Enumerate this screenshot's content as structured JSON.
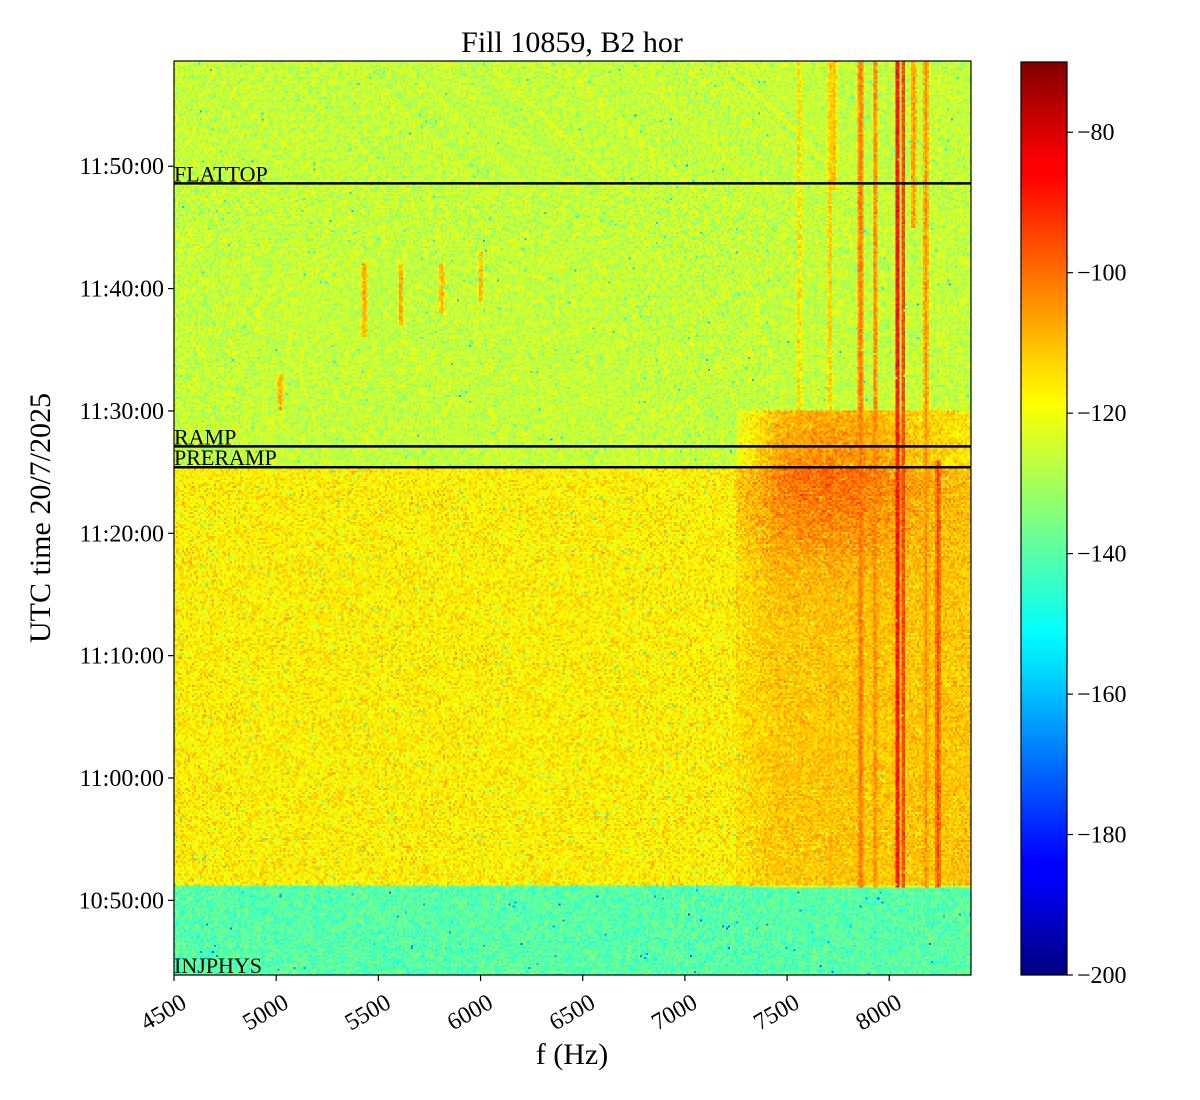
{
  "chart_data": {
    "type": "heatmap",
    "title": "Fill 10859, B2 hor",
    "xlabel": "f (Hz)",
    "ylabel": "UTC time 20/7/2025",
    "xlim": [
      4500,
      8400
    ],
    "ylim_minutes": [
      643.9,
      718.6
    ],
    "x_ticks": [
      {
        "value": 4500,
        "label": "4500"
      },
      {
        "value": 5000,
        "label": "5000"
      },
      {
        "value": 5500,
        "label": "5500"
      },
      {
        "value": 6000,
        "label": "6000"
      },
      {
        "value": 6500,
        "label": "6500"
      },
      {
        "value": 7000,
        "label": "7000"
      },
      {
        "value": 7500,
        "label": "7500"
      },
      {
        "value": 8000,
        "label": "8000"
      }
    ],
    "y_ticks": [
      {
        "value": 650,
        "label": "10:50:00"
      },
      {
        "value": 660,
        "label": "11:00:00"
      },
      {
        "value": 670,
        "label": "11:10:00"
      },
      {
        "value": 680,
        "label": "11:20:00"
      },
      {
        "value": 690,
        "label": "11:30:00"
      },
      {
        "value": 700,
        "label": "11:40:00"
      },
      {
        "value": 710,
        "label": "11:50:00"
      }
    ],
    "colorbar": {
      "colormap": "jet",
      "range": [
        -200,
        -70
      ],
      "ticks": [
        {
          "value": -80,
          "label": "−80"
        },
        {
          "value": -100,
          "label": "−100"
        },
        {
          "value": -120,
          "label": "−120"
        },
        {
          "value": -140,
          "label": "−140"
        },
        {
          "value": -160,
          "label": "−160"
        },
        {
          "value": -180,
          "label": "−180"
        },
        {
          "value": -200,
          "label": "−200"
        }
      ]
    },
    "background_levels": [
      {
        "from": 643.9,
        "to": 651.2,
        "level": -140
      },
      {
        "from": 651.2,
        "to": 685.4,
        "level": -117
      },
      {
        "from": 685.4,
        "to": 718.6,
        "level": -126
      }
    ],
    "broadband_hump": {
      "f_from": 7250,
      "f_to": 8400,
      "t_from": 651,
      "t_to": 690,
      "level": -108
    },
    "spectral_lines": [
      {
        "f": 7860,
        "t_from": 651,
        "t_to": 718.6,
        "level": -100
      },
      {
        "f": 7930,
        "t_from": 651,
        "t_to": 718.6,
        "level": -102
      },
      {
        "f": 8040,
        "t_from": 651,
        "t_to": 718.6,
        "level": -86
      },
      {
        "f": 8070,
        "t_from": 651,
        "t_to": 718.6,
        "level": -92
      },
      {
        "f": 8120,
        "t_from": 705,
        "t_to": 718.6,
        "level": -104
      },
      {
        "f": 8180,
        "t_from": 651,
        "t_to": 718.6,
        "level": -104
      },
      {
        "f": 8240,
        "t_from": 651,
        "t_to": 686,
        "level": -95
      },
      {
        "f": 7710,
        "t_from": 651,
        "t_to": 718.6,
        "level": -110
      },
      {
        "f": 7560,
        "t_from": 660,
        "t_to": 718.6,
        "level": -112
      },
      {
        "f": 7730,
        "t_from": 708,
        "t_to": 718.6,
        "level": -108
      },
      {
        "f": 5430,
        "t_from": 696,
        "t_to": 702,
        "level": -106
      },
      {
        "f": 5610,
        "t_from": 697,
        "t_to": 702,
        "level": -106
      },
      {
        "f": 5810,
        "t_from": 698,
        "t_to": 702,
        "level": -108
      },
      {
        "f": 6000,
        "t_from": 699,
        "t_to": 703,
        "level": -108
      },
      {
        "f": 5020,
        "t_from": 690,
        "t_to": 693,
        "level": -106
      }
    ],
    "events": [
      {
        "label": "FLATTOP",
        "t": 708.6
      },
      {
        "label": "RAMP",
        "t": 687.1
      },
      {
        "label": "PRERAMP",
        "t": 685.4
      },
      {
        "label": "INJPHYS",
        "t": 643.9
      }
    ]
  }
}
